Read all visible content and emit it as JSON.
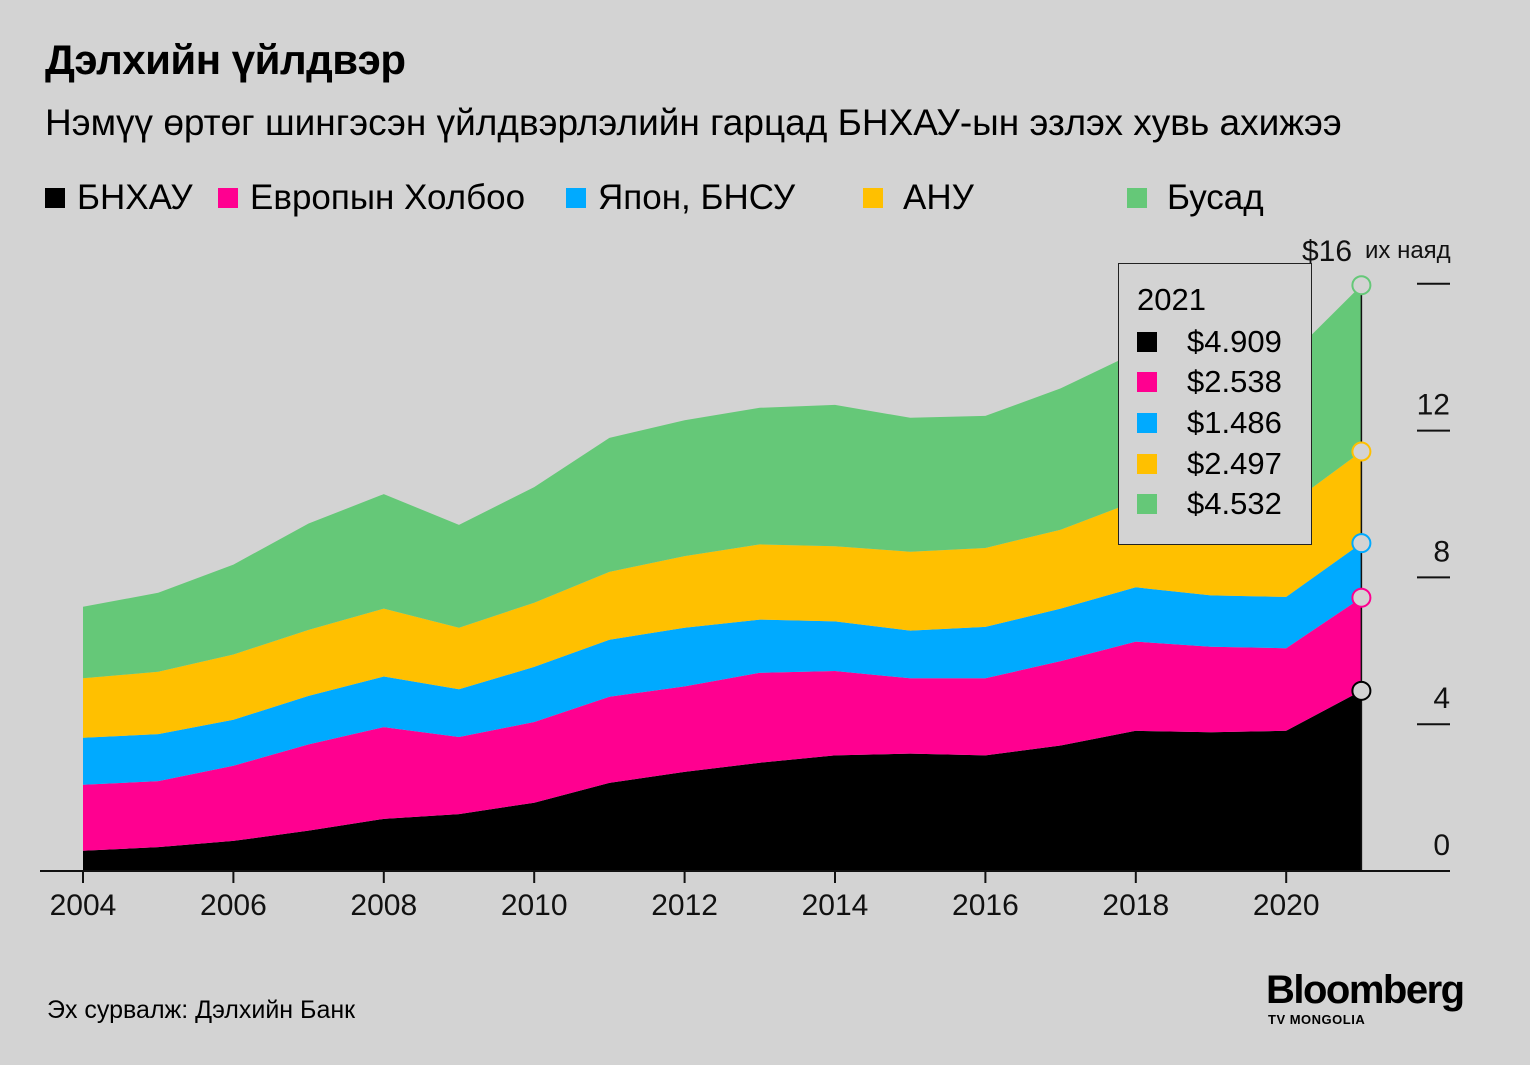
{
  "title": "Дэлхийн үйлдвэр",
  "subtitle": "Нэмүү өртөг шингэсэн үйлдвэрлэлийн гарцад БНХАУ-ын эзлэх хувь ахижээ",
  "legend": [
    {
      "label": "БНХАУ",
      "color": "#000000"
    },
    {
      "label": "Европын Холбоо",
      "color": "#ff0090"
    },
    {
      "label": "Япон, БНСУ",
      "color": "#00aaff"
    },
    {
      "label": "АНУ",
      "color": "#ffc000"
    },
    {
      "label": "Бусад",
      "color": "#65c878"
    }
  ],
  "y_axis": {
    "top_label_prefix": "$16",
    "top_label_unit": "их наяд"
  },
  "tooltip": {
    "year": "2021",
    "values": [
      "$4.909",
      "$2.538",
      "$1.486",
      "$2.497",
      "$4.532"
    ]
  },
  "source": "Эх сурвалж: Дэлхийн Банк",
  "logo": "Bloomberg",
  "logo_sub": "TV MONGOLIA",
  "chart_data": {
    "type": "area",
    "stacked": true,
    "x": [
      2004,
      2005,
      2006,
      2007,
      2008,
      2009,
      2010,
      2011,
      2012,
      2013,
      2014,
      2015,
      2016,
      2017,
      2018,
      2019,
      2020,
      2021
    ],
    "x_ticks": [
      "2004",
      "2006",
      "2008",
      "2010",
      "2012",
      "2014",
      "2016",
      "2018",
      "2020"
    ],
    "y_ticks": [
      "0",
      "4",
      "8",
      "12"
    ],
    "ylim": [
      0,
      16
    ],
    "series": [
      {
        "name": "БНХАУ",
        "color": "#000000",
        "values": [
          0.55,
          0.65,
          0.82,
          1.1,
          1.42,
          1.55,
          1.86,
          2.4,
          2.7,
          2.95,
          3.15,
          3.2,
          3.15,
          3.42,
          3.82,
          3.78,
          3.82,
          4.909
        ]
      },
      {
        "name": "Европын Холбоо",
        "color": "#ff0090",
        "values": [
          1.8,
          1.8,
          2.05,
          2.35,
          2.5,
          2.1,
          2.2,
          2.35,
          2.33,
          2.45,
          2.3,
          2.05,
          2.1,
          2.3,
          2.43,
          2.33,
          2.25,
          2.538
        ]
      },
      {
        "name": "Япон, БНСУ",
        "color": "#00aaff",
        "values": [
          1.28,
          1.28,
          1.25,
          1.32,
          1.38,
          1.3,
          1.5,
          1.55,
          1.6,
          1.45,
          1.35,
          1.3,
          1.4,
          1.43,
          1.48,
          1.4,
          1.4,
          1.486
        ]
      },
      {
        "name": "АНУ",
        "color": "#ffc000",
        "values": [
          1.62,
          1.7,
          1.78,
          1.8,
          1.85,
          1.68,
          1.75,
          1.85,
          1.95,
          2.05,
          2.05,
          2.15,
          2.15,
          2.15,
          2.35,
          2.3,
          2.45,
          2.497
        ]
      },
      {
        "name": "Бусад",
        "color": "#65c878",
        "values": [
          1.95,
          2.15,
          2.45,
          2.9,
          3.12,
          2.8,
          3.15,
          3.65,
          3.7,
          3.72,
          3.85,
          3.65,
          3.6,
          3.85,
          4.05,
          4.1,
          4.0,
          4.532
        ]
      }
    ]
  }
}
